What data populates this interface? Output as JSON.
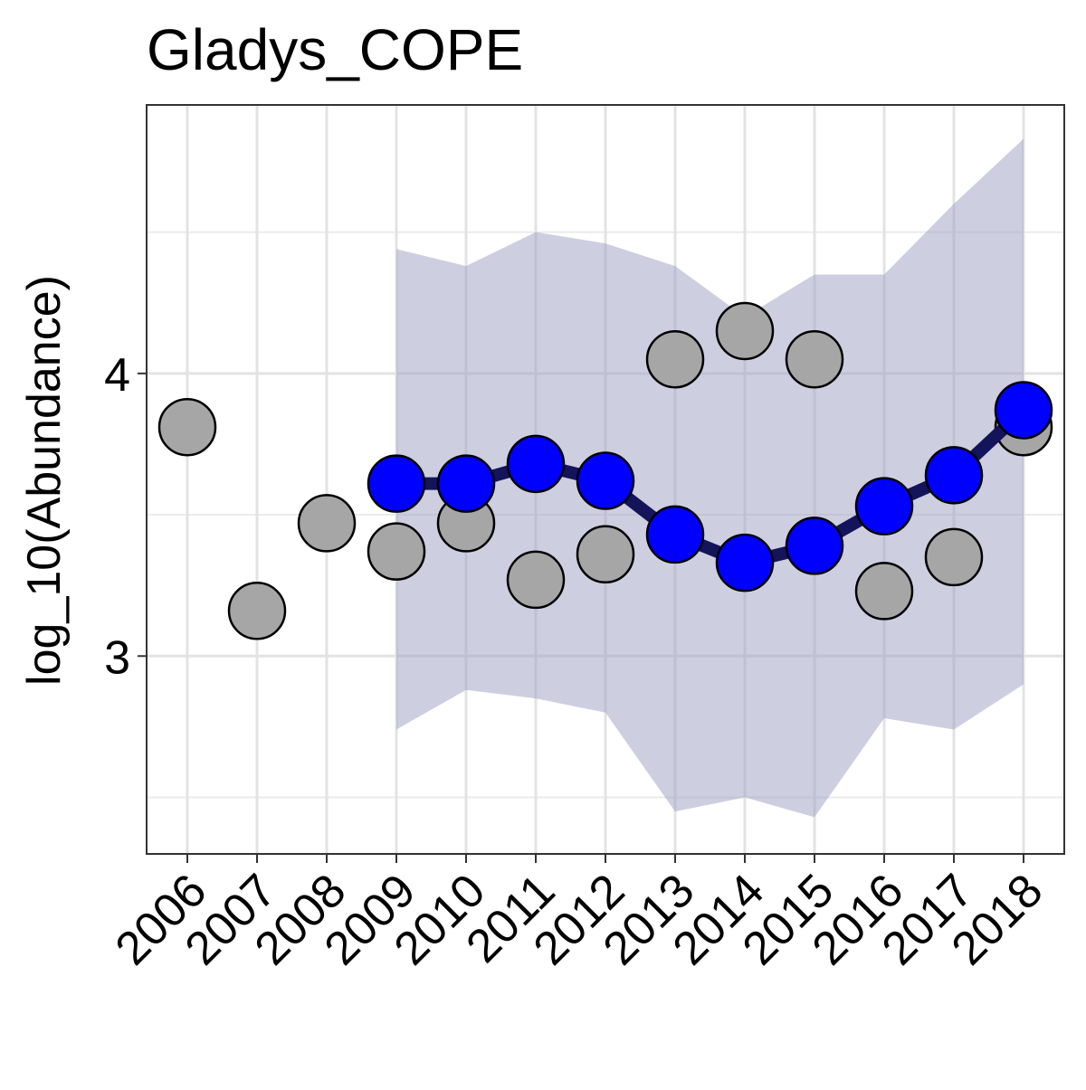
{
  "chart_data": {
    "type": "line",
    "title": "Gladys_COPE",
    "xlabel": "",
    "ylabel": "log_10(Abundance)",
    "x": [
      "2006",
      "2007",
      "2008",
      "2009",
      "2010",
      "2011",
      "2012",
      "2013",
      "2014",
      "2015",
      "2016",
      "2017",
      "2018"
    ],
    "ylim": [
      2.3,
      4.95
    ],
    "yticks": [
      3,
      4
    ],
    "grid": true,
    "legend": "none",
    "series": [
      {
        "kind": "observed",
        "color": "#a6a6a6",
        "values": [
          3.81,
          3.16,
          3.47,
          3.37,
          3.47,
          3.27,
          3.36,
          4.05,
          4.15,
          4.05,
          3.23,
          3.35,
          3.81
        ]
      },
      {
        "kind": "estimate",
        "color": "#0000ff",
        "line_color": "#14145a",
        "values": [
          null,
          null,
          null,
          3.61,
          3.61,
          3.68,
          3.62,
          3.43,
          3.33,
          3.39,
          3.53,
          3.64,
          3.87
        ]
      }
    ],
    "band": {
      "color": "#9e9ec4",
      "lower": [
        null,
        null,
        null,
        2.74,
        2.88,
        2.85,
        2.8,
        2.45,
        2.5,
        2.43,
        2.78,
        2.74,
        2.9
      ],
      "upper": [
        null,
        null,
        null,
        4.44,
        4.38,
        4.5,
        4.46,
        4.38,
        4.2,
        4.35,
        4.35,
        4.6,
        4.83
      ]
    }
  }
}
